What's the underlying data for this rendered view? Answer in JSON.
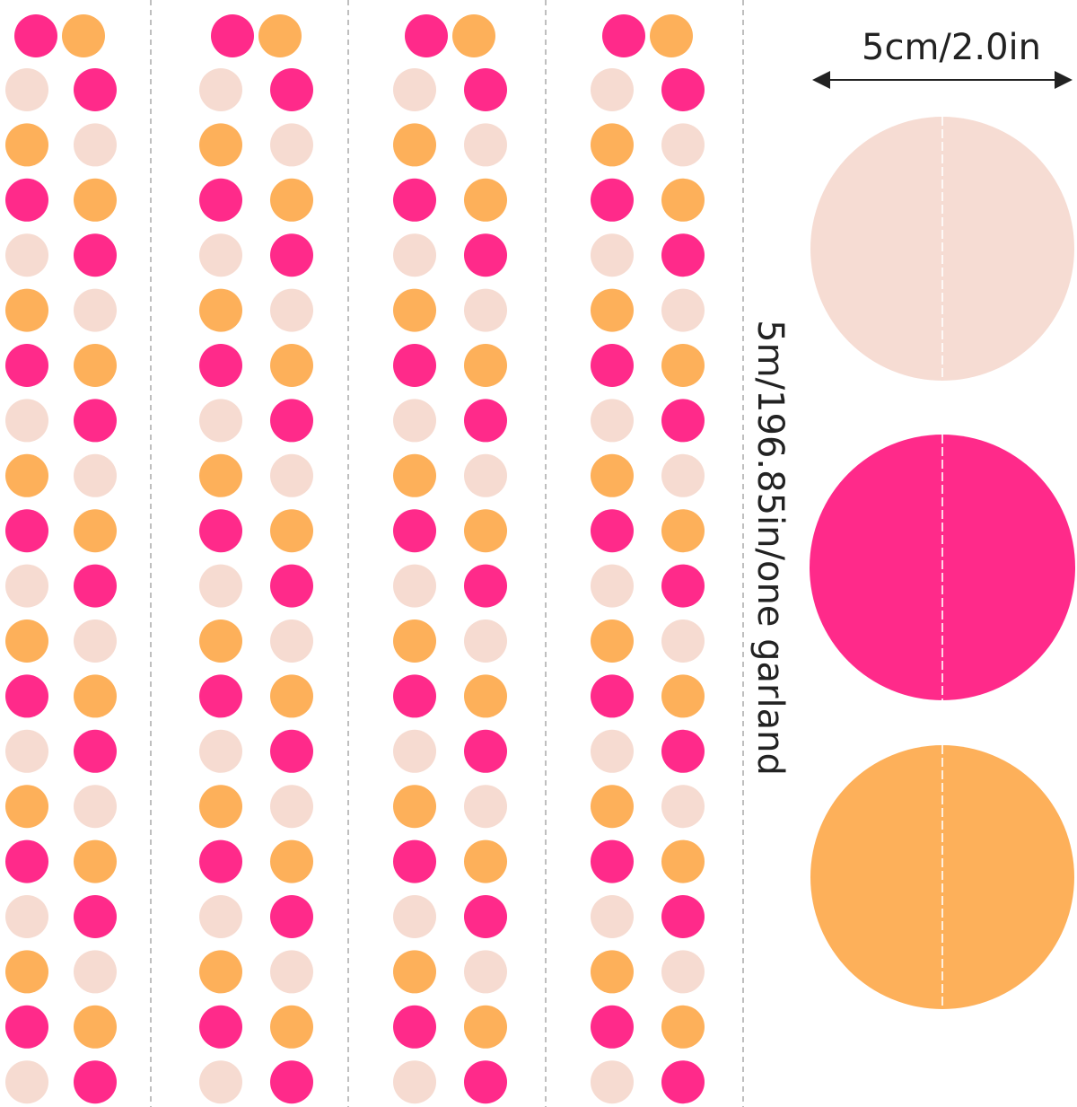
{
  "labels": {
    "diameter": "5cm/2.0in",
    "length": "5m/196.85in/one garland"
  }
}
